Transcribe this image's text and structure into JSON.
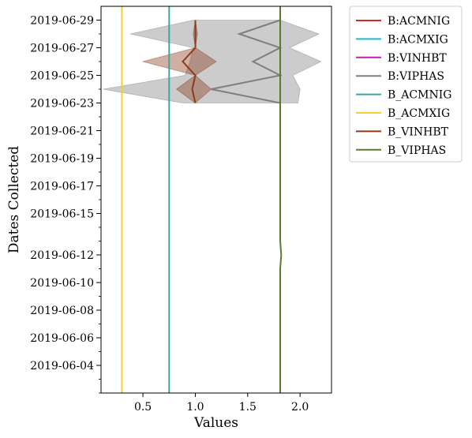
{
  "chart_data": {
    "type": "line",
    "xlabel": "Values",
    "ylabel": "Dates Collected",
    "xlim": [
      0.1,
      2.3
    ],
    "ylim": [
      "2019-06-02",
      "2019-06-30"
    ],
    "x_ticks": [
      "0.5",
      "1.0",
      "1.5",
      "2.0"
    ],
    "x_tick_values": [
      0.5,
      1.0,
      1.5,
      2.0
    ],
    "y_ticks": [
      "2019-06-04",
      "2019-06-06",
      "2019-06-08",
      "2019-06-10",
      "2019-06-12",
      "2019-06-15",
      "2019-06-17",
      "2019-06-19",
      "2019-06-21",
      "2019-06-23",
      "2019-06-25",
      "2019-06-27",
      "2019-06-29"
    ],
    "grid": false,
    "legend_position": "outside-right",
    "series": [
      {
        "name": "B:ACMNIG",
        "color": "#d62728",
        "values": []
      },
      {
        "name": "B:ACMXIG",
        "color": "#17becf",
        "values": []
      },
      {
        "name": "B:VINHBT",
        "color": "#c41fa8",
        "values": []
      },
      {
        "name": "B:VIPHAS",
        "color": "#7f7f7f",
        "points": [
          [
            "2019-06-23",
            1.81
          ],
          [
            "2019-06-24",
            1.15
          ],
          [
            "2019-06-25",
            1.81
          ],
          [
            "2019-06-26",
            1.55
          ],
          [
            "2019-06-27",
            1.81
          ],
          [
            "2019-06-28",
            1.42
          ],
          [
            "2019-06-29",
            1.81
          ]
        ],
        "band": [
          [
            "2019-06-23",
            0.88,
            1.98
          ],
          [
            "2019-06-24",
            0.12,
            2.0
          ],
          [
            "2019-06-25",
            0.9,
            1.93
          ],
          [
            "2019-06-26",
            0.95,
            2.2
          ],
          [
            "2019-06-27",
            0.98,
            1.9
          ],
          [
            "2019-06-28",
            0.38,
            2.18
          ],
          [
            "2019-06-29",
            0.98,
            1.81
          ]
        ]
      },
      {
        "name": "B_ACMNIG",
        "color": "#3aa89a",
        "points": [
          [
            "2019-06-02",
            0.75
          ],
          [
            "2019-06-30",
            0.75
          ]
        ]
      },
      {
        "name": "B_ACMXIG",
        "color": "#f5cf2e",
        "points": [
          [
            "2019-06-02",
            0.3
          ],
          [
            "2019-06-30",
            0.3
          ]
        ]
      },
      {
        "name": "B_VINHBT",
        "color": "#8b3a1c",
        "points": [
          [
            "2019-06-23",
            1.0
          ],
          [
            "2019-06-24",
            0.97
          ],
          [
            "2019-06-25",
            1.0
          ],
          [
            "2019-06-26",
            0.88
          ],
          [
            "2019-06-27",
            1.0
          ],
          [
            "2019-06-28",
            1.0
          ],
          [
            "2019-06-29",
            1.0
          ]
        ],
        "band": [
          [
            "2019-06-23",
            1.0,
            1.0
          ],
          [
            "2019-06-24",
            0.82,
            1.15
          ],
          [
            "2019-06-25",
            1.0,
            1.0
          ],
          [
            "2019-06-26",
            0.5,
            1.2
          ],
          [
            "2019-06-27",
            1.0,
            1.0
          ],
          [
            "2019-06-28",
            0.98,
            1.02
          ],
          [
            "2019-06-29",
            1.0,
            1.0
          ]
        ]
      },
      {
        "name": "B_VIPHAS",
        "color": "#5c7a2e",
        "points": [
          [
            "2019-06-02",
            1.81
          ],
          [
            "2019-06-11",
            1.81
          ],
          [
            "2019-06-12",
            1.82
          ],
          [
            "2019-06-13",
            1.81
          ],
          [
            "2019-06-30",
            1.81
          ]
        ]
      }
    ]
  }
}
